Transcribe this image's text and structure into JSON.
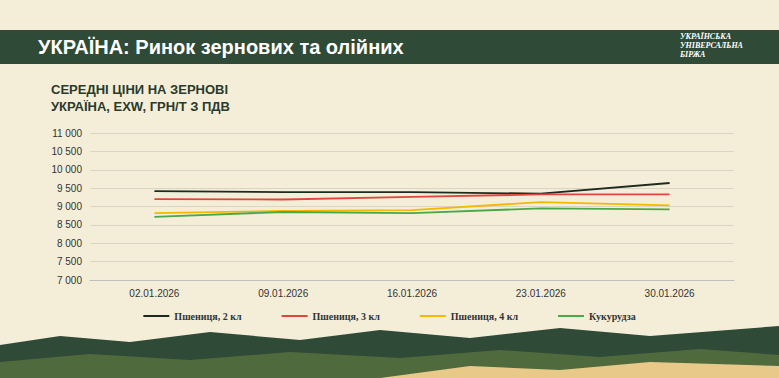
{
  "header": {
    "title": "УКРАЇНА: Ринок зернових та олійних",
    "logo": [
      "УКРАЇНСЬКА",
      "УНІВЕРСАЛЬНА",
      "БІРЖА"
    ]
  },
  "chart_data": {
    "type": "line",
    "title": "СЕРЕДНІ ЦІНИ НА ЗЕРНОВІ",
    "subtitle": "УКРАЇНА, EXW, ГРН/Т З ПДВ",
    "categories": [
      "02.01.2026",
      "09.01.2026",
      "16.01.2026",
      "23.01.2026",
      "30.01.2026"
    ],
    "series": [
      {
        "name": "Пшениця, 2 кл",
        "color": "#1c2b1e",
        "values": [
          9420,
          9390,
          9390,
          9350,
          9640
        ]
      },
      {
        "name": "Пшениця, 3 кл",
        "color": "#e0463c",
        "values": [
          9200,
          9190,
          9260,
          9330,
          9330
        ]
      },
      {
        "name": "Пшениця, 4 кл",
        "color": "#f5b800",
        "values": [
          8820,
          8880,
          8900,
          9120,
          9030
        ]
      },
      {
        "name": "Кукурудза",
        "color": "#4aa84a",
        "values": [
          8720,
          8850,
          8820,
          8950,
          8920
        ]
      }
    ],
    "ylim": [
      7000,
      11000
    ],
    "yticks": [
      {
        "value": 7000,
        "label": "7 000"
      },
      {
        "value": 7500,
        "label": "7 500"
      },
      {
        "value": 8000,
        "label": "8 000"
      },
      {
        "value": 8500,
        "label": "8 500"
      },
      {
        "value": 9000,
        "label": "9 000"
      },
      {
        "value": 9500,
        "label": "9 500"
      },
      {
        "value": 10000,
        "label": "10 000"
      },
      {
        "value": 10500,
        "label": "10 500"
      },
      {
        "value": 11000,
        "label": "11 000"
      }
    ],
    "grid": true,
    "legend": "bottom"
  }
}
